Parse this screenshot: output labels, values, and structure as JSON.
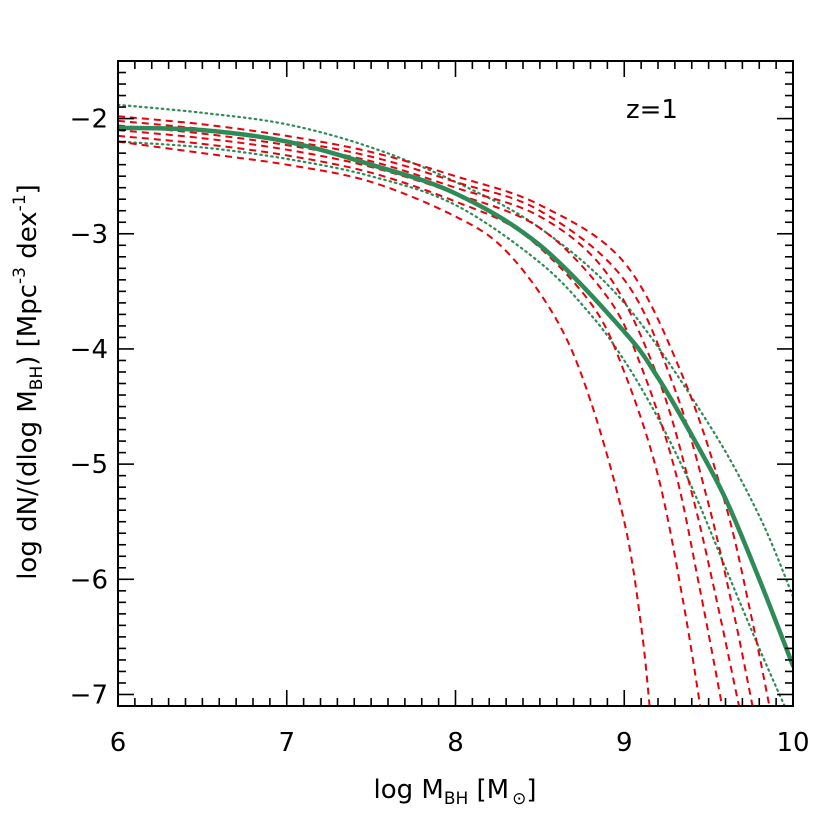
{
  "chart_data": {
    "type": "line",
    "annotation": "z=1",
    "xlabel": {
      "prefix": "log M",
      "sub": "BH",
      "suffix": " [M",
      "close": "]"
    },
    "ylabel": {
      "prefix": "log dN/(dlog M",
      "sub": "BH",
      "mid": ")  [Mpc",
      "sup1": "-3",
      "mid2": " dex",
      "sup2": "-1",
      "close": "]"
    },
    "xlim": [
      6,
      10
    ],
    "ylim": [
      -7.1,
      -1.5
    ],
    "xticks": [
      6,
      7,
      8,
      9,
      10
    ],
    "yticks": [
      -2,
      -3,
      -4,
      -5,
      -6,
      -7
    ],
    "xtick_labels": [
      "6",
      "7",
      "8",
      "9",
      "10"
    ],
    "ytick_labels": [
      "−2",
      "−3",
      "−4",
      "−5",
      "−6",
      "−7"
    ],
    "colors": {
      "model": "#2e8b57",
      "model_bounds": "#2e8b57",
      "observed": "#e8000b"
    },
    "series": [
      {
        "style": "solid",
        "color": "#2e8b57",
        "x": [
          6.0,
          6.5,
          7.0,
          7.5,
          8.0,
          8.5,
          9.0,
          9.2,
          9.4,
          9.6,
          9.8,
          10.0
        ],
        "y": [
          -2.08,
          -2.1,
          -2.2,
          -2.4,
          -2.65,
          -3.1,
          -3.85,
          -4.25,
          -4.75,
          -5.3,
          -6.0,
          -6.75
        ]
      },
      {
        "style": "dotted",
        "color": "#2e8b57",
        "x": [
          6.0,
          6.5,
          7.0,
          7.5,
          8.0,
          8.5,
          9.0,
          9.5,
          9.8,
          10.0
        ],
        "y": [
          -1.88,
          -1.95,
          -2.05,
          -2.25,
          -2.55,
          -2.95,
          -3.6,
          -4.65,
          -5.45,
          -6.15
        ]
      },
      {
        "style": "dotted",
        "color": "#2e8b57",
        "x": [
          6.0,
          6.5,
          7.0,
          7.5,
          8.0,
          8.5,
          8.8,
          9.0,
          9.2,
          9.4,
          9.6,
          9.8,
          9.95
        ],
        "y": [
          -2.2,
          -2.25,
          -2.35,
          -2.5,
          -2.75,
          -3.25,
          -3.7,
          -4.1,
          -4.6,
          -5.2,
          -5.9,
          -6.6,
          -7.1
        ]
      },
      {
        "style": "dashed",
        "color": "#e8000b",
        "x": [
          6.0,
          6.5,
          7.0,
          7.5,
          8.0,
          8.3,
          8.6,
          8.8,
          9.0,
          9.1,
          9.15
        ],
        "y": [
          -2.2,
          -2.3,
          -2.4,
          -2.55,
          -2.85,
          -3.15,
          -3.75,
          -4.45,
          -5.5,
          -6.4,
          -7.1
        ]
      },
      {
        "style": "dashed",
        "color": "#e8000b",
        "x": [
          6.0,
          6.5,
          7.0,
          7.5,
          8.0,
          8.4,
          8.8,
          9.0,
          9.2,
          9.35,
          9.45
        ],
        "y": [
          -2.15,
          -2.22,
          -2.32,
          -2.47,
          -2.72,
          -3.0,
          -3.6,
          -4.2,
          -5.1,
          -6.2,
          -7.1
        ]
      },
      {
        "style": "dashed",
        "color": "#e8000b",
        "x": [
          6.0,
          6.5,
          7.0,
          7.5,
          8.0,
          8.5,
          8.9,
          9.1,
          9.3,
          9.45,
          9.58
        ],
        "y": [
          -2.1,
          -2.17,
          -2.27,
          -2.42,
          -2.65,
          -2.95,
          -3.55,
          -4.15,
          -5.05,
          -6.1,
          -7.1
        ]
      },
      {
        "style": "dashed",
        "color": "#e8000b",
        "x": [
          6.0,
          6.5,
          7.0,
          7.5,
          8.0,
          8.5,
          8.9,
          9.2,
          9.4,
          9.55,
          9.68
        ],
        "y": [
          -2.06,
          -2.13,
          -2.23,
          -2.37,
          -2.6,
          -2.85,
          -3.35,
          -4.25,
          -5.25,
          -6.2,
          -7.1
        ]
      },
      {
        "style": "dashed",
        "color": "#e8000b",
        "x": [
          6.0,
          6.5,
          7.0,
          7.5,
          8.0,
          8.5,
          9.0,
          9.3,
          9.5,
          9.65,
          9.76
        ],
        "y": [
          -2.02,
          -2.09,
          -2.19,
          -2.33,
          -2.55,
          -2.8,
          -3.4,
          -4.35,
          -5.35,
          -6.3,
          -7.1
        ]
      },
      {
        "style": "dashed",
        "color": "#e8000b",
        "x": [
          6.0,
          6.5,
          7.0,
          7.5,
          8.0,
          8.5,
          9.0,
          9.35,
          9.6,
          9.75,
          9.86
        ],
        "y": [
          -1.98,
          -2.05,
          -2.15,
          -2.29,
          -2.5,
          -2.75,
          -3.25,
          -4.25,
          -5.35,
          -6.3,
          -7.1
        ]
      }
    ]
  }
}
